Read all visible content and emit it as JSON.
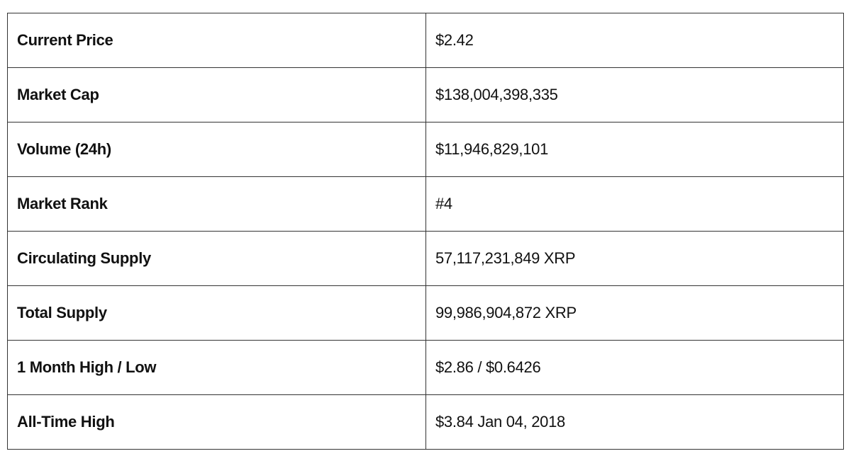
{
  "table": {
    "rows": [
      [
        "Current Price",
        "$2.42"
      ],
      [
        "Market Cap",
        "$138,004,398,335"
      ],
      [
        "Volume (24h)",
        "$11,946,829,101"
      ],
      [
        "Market Rank",
        "#4"
      ],
      [
        "Circulating Supply",
        "57,117,231,849 XRP"
      ],
      [
        "Total Supply",
        "99,986,904,872 XRP"
      ],
      [
        "1 Month High / Low",
        "$2.86 / $0.6426"
      ],
      [
        "All-Time High",
        "$3.84 Jan 04, 2018"
      ]
    ]
  }
}
